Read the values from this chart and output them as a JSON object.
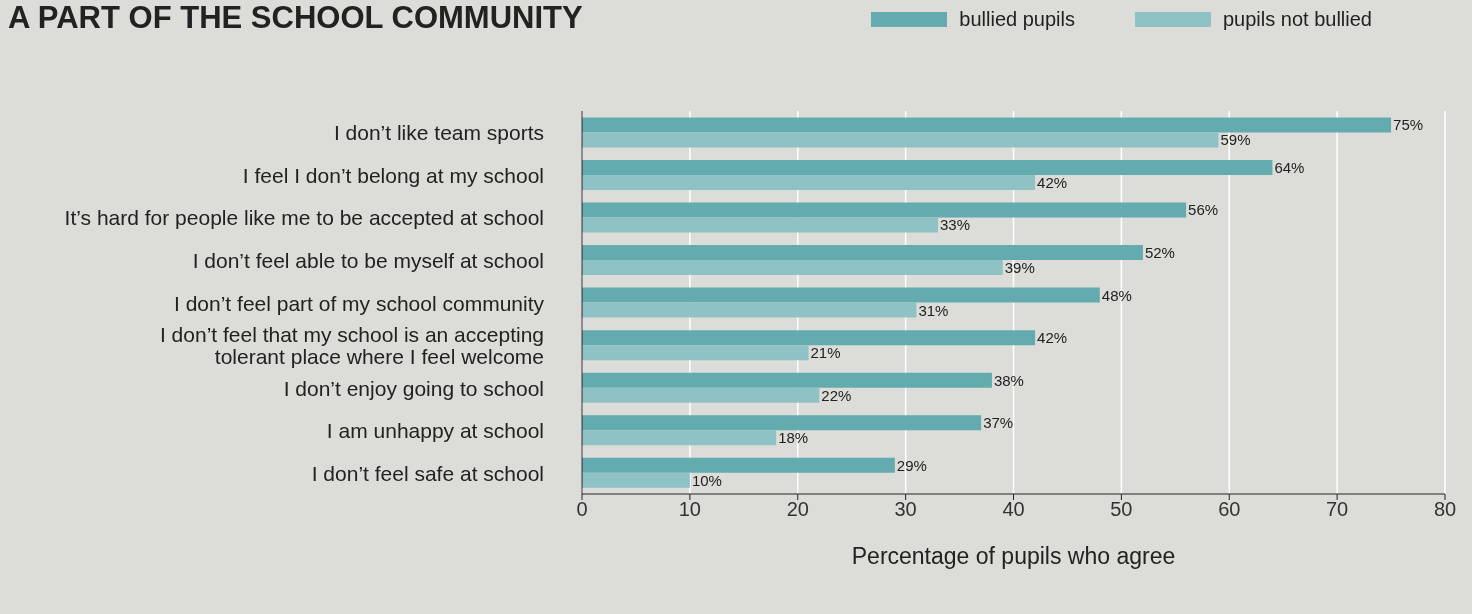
{
  "chart_data": {
    "type": "bar",
    "orientation": "horizontal",
    "title": "A PART OF THE SCHOOL COMMUNITY",
    "xlabel": "Percentage of pupils who agree",
    "categories": [
      "I don’t like team sports",
      "I feel I don’t belong at my school",
      "It’s hard for people like me to be accepted at school",
      "I don’t feel able to be myself at school",
      "I don’t feel part of my school community",
      "I don’t feel that my school is an accepting tolerant place where I feel welcome",
      "I don’t enjoy going to school",
      "I am unhappy at school",
      "I don’t feel safe at school"
    ],
    "series": [
      {
        "name": "bullied pupils",
        "color": "#63abae",
        "values": [
          75,
          64,
          56,
          52,
          48,
          42,
          38,
          37,
          29
        ],
        "value_labels": [
          "75%",
          "64%",
          "56%",
          "52%",
          "48%",
          "42%",
          "38%",
          "37%",
          "29%"
        ]
      },
      {
        "name": "pupils not bullied",
        "color": "#8fc2c4",
        "values": [
          59,
          42,
          33,
          39,
          31,
          21,
          22,
          18,
          10
        ],
        "value_labels": [
          "59%",
          "42%",
          "33%",
          "39%",
          "31%",
          "21%",
          "22%",
          "18%",
          "10%"
        ]
      }
    ],
    "xlim": [
      0,
      80
    ],
    "xticks": [
      0,
      10,
      20,
      30,
      40,
      50,
      60,
      70,
      80
    ],
    "grid": "x",
    "legend": "top right"
  }
}
